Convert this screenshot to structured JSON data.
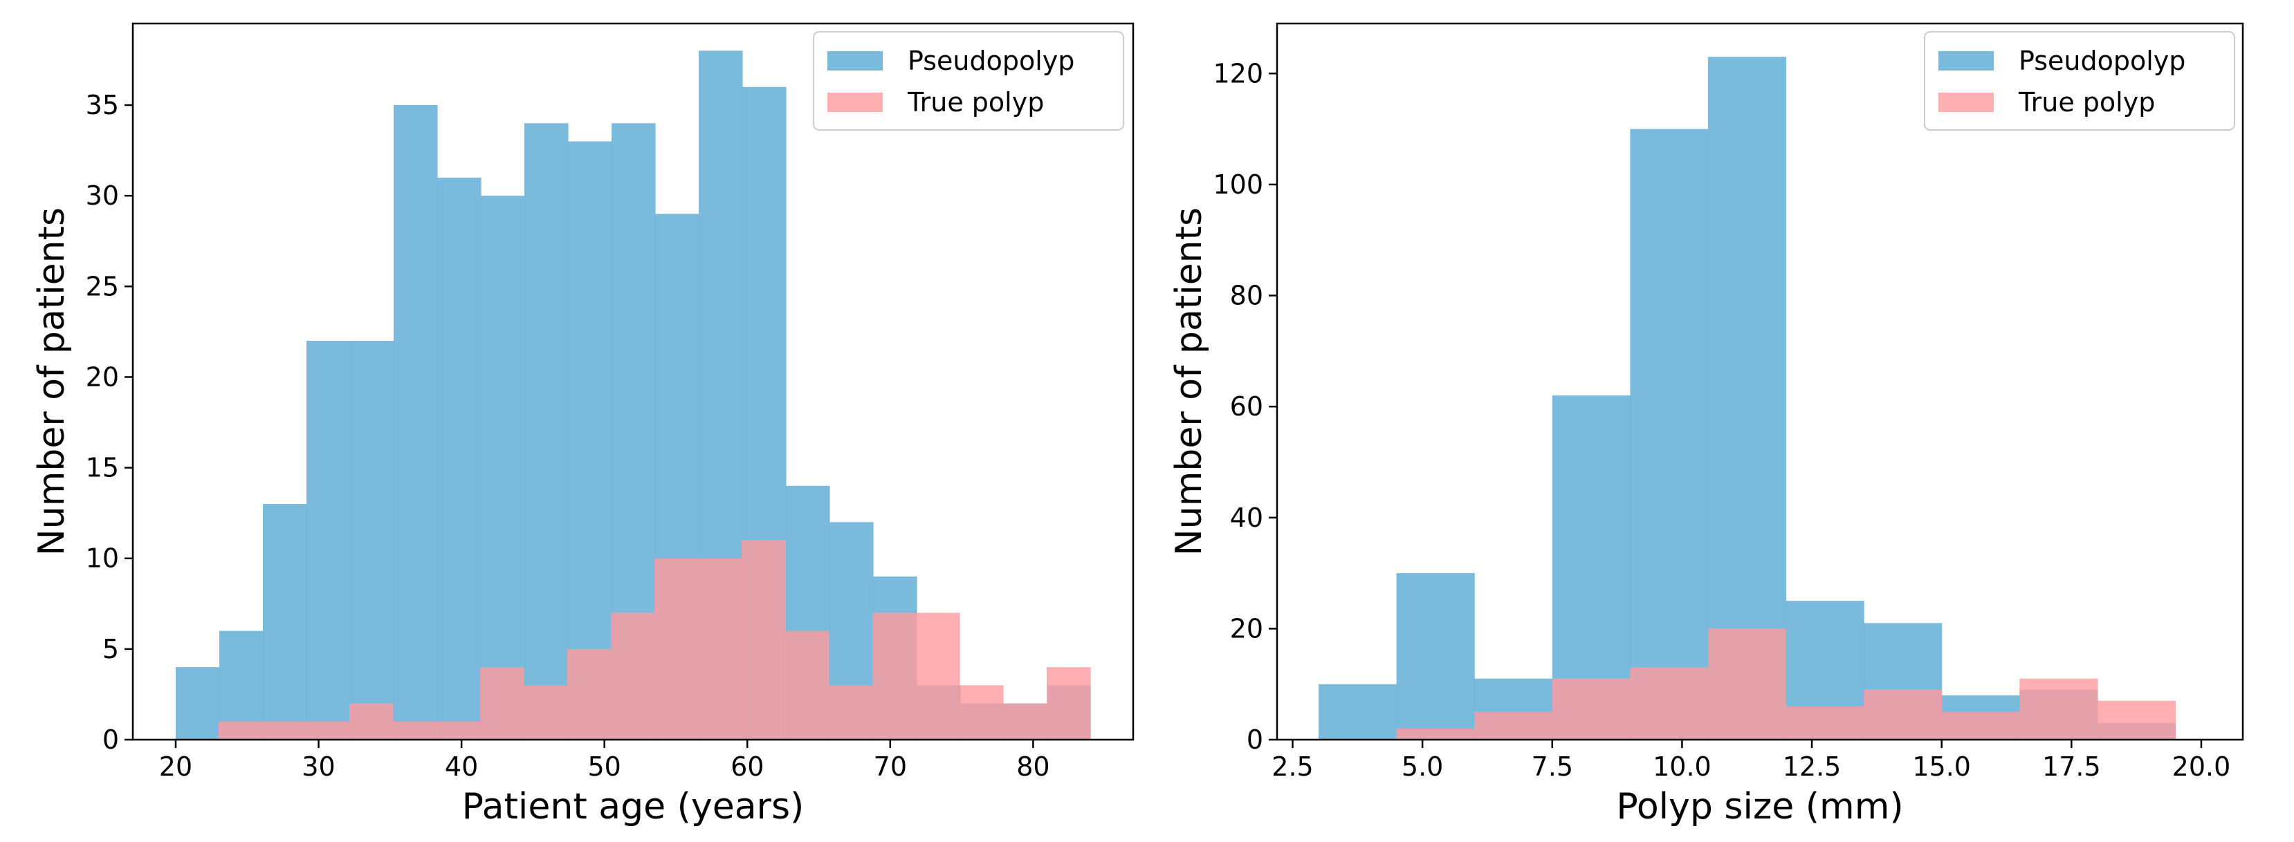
{
  "colors": {
    "pseudopolyp": "#6BB3D8",
    "true_polyp": "#FF9B9E",
    "pseudopolyp_alpha": 0.9,
    "true_polyp_alpha": 0.8
  },
  "chart_data": [
    {
      "type": "bar",
      "subtype": "histogram-overlay",
      "xlabel": "Patient age (years)",
      "ylabel": "Number of patients",
      "xlim": [
        17,
        87
      ],
      "ylim": [
        0,
        39.5
      ],
      "xticks": [
        20,
        30,
        40,
        50,
        60,
        70,
        80
      ],
      "xtick_labels": [
        "20",
        "30",
        "40",
        "50",
        "60",
        "70",
        "80"
      ],
      "yticks": [
        0,
        5,
        10,
        15,
        20,
        25,
        30,
        35
      ],
      "ytick_labels": [
        "0",
        "5",
        "10",
        "15",
        "20",
        "25",
        "30",
        "35"
      ],
      "legend": {
        "position": "top-right",
        "entries": [
          "Pseudopolyp",
          "True polyp"
        ]
      },
      "series": [
        {
          "name": "Pseudopolyp",
          "bin_edges": [
            20,
            23.05,
            26.1,
            29.15,
            32.2,
            35.25,
            38.3,
            41.35,
            44.4,
            47.45,
            50.5,
            53.55,
            56.6,
            59.65,
            62.7,
            65.75,
            68.8,
            71.85,
            74.9,
            77.95,
            81,
            84
          ],
          "values": [
            4,
            6,
            13,
            22,
            22,
            35,
            31,
            30,
            34,
            33,
            34,
            29,
            38,
            36,
            14,
            12,
            9,
            3,
            2,
            2,
            3
          ]
        },
        {
          "name": "True polyp",
          "bin_edges": [
            23,
            26.05,
            29.1,
            32.15,
            35.2,
            38.25,
            41.3,
            44.35,
            47.4,
            50.45,
            53.5,
            56.55,
            59.6,
            62.65,
            65.7,
            68.75,
            71.8,
            74.85,
            77.9,
            80.95,
            84
          ],
          "values": [
            1,
            1,
            1,
            2,
            1,
            1,
            4,
            3,
            5,
            7,
            10,
            10,
            11,
            6,
            3,
            7,
            7,
            3,
            2,
            4
          ]
        }
      ]
    },
    {
      "type": "bar",
      "subtype": "histogram-overlay",
      "xlabel": "Polyp size (mm)",
      "ylabel": "Number of patients",
      "xlim": [
        2.2,
        20.8
      ],
      "ylim": [
        0,
        129
      ],
      "xticks": [
        2.5,
        5,
        7.5,
        10,
        12.5,
        15,
        17.5,
        20
      ],
      "xtick_labels": [
        "2.5",
        "5.0",
        "7.5",
        "10.0",
        "12.5",
        "15.0",
        "17.5",
        "20.0"
      ],
      "yticks": [
        0,
        20,
        40,
        60,
        80,
        100,
        120
      ],
      "ytick_labels": [
        "0",
        "20",
        "40",
        "60",
        "80",
        "100",
        "120"
      ],
      "legend": {
        "position": "top-right",
        "entries": [
          "Pseudopolyp",
          "True polyp"
        ]
      },
      "series": [
        {
          "name": "Pseudopolyp",
          "bin_edges": [
            3,
            4.5,
            6,
            7.5,
            9,
            10.5,
            12,
            13.5,
            15,
            16.5,
            18,
            19.5
          ],
          "values": [
            10,
            30,
            11,
            62,
            110,
            123,
            25,
            21,
            8,
            9,
            3
          ]
        },
        {
          "name": "True polyp",
          "bin_edges": [
            4.5,
            6,
            7.5,
            9,
            10.5,
            12,
            13.5,
            15,
            16.5,
            18,
            19.5
          ],
          "values": [
            2,
            5,
            11,
            13,
            20,
            6,
            9,
            5,
            11,
            7
          ]
        }
      ]
    }
  ]
}
